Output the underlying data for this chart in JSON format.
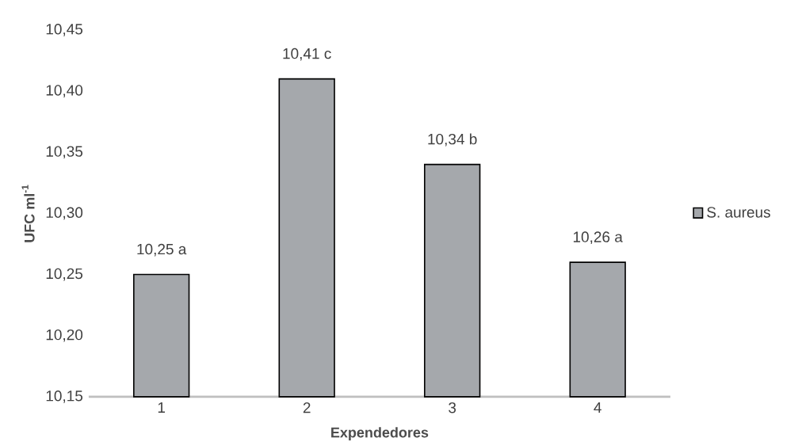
{
  "chart_data": {
    "type": "bar",
    "xlabel": "Expendedores",
    "ylabel": "UFC ml$^{-1}$",
    "categories": [
      "1",
      "2",
      "3",
      "4"
    ],
    "series": [
      {
        "name": "S. aureus",
        "color": "#a5a8ac",
        "values": [
          10.25,
          10.41,
          10.34,
          10.26
        ],
        "value_labels": [
          "10,25 a",
          "10,41 c",
          "10,34 b",
          "10,26 a"
        ]
      }
    ],
    "ylim": [
      10.15,
      10.45
    ],
    "yticks": [
      {
        "value": 10.15,
        "label": "10,15"
      },
      {
        "value": 10.2,
        "label": "10,20"
      },
      {
        "value": 10.25,
        "label": "10,25"
      },
      {
        "value": 10.3,
        "label": "10,30"
      },
      {
        "value": 10.35,
        "label": "10,35"
      },
      {
        "value": 10.4,
        "label": "10,40"
      },
      {
        "value": 10.45,
        "label": "10,45"
      }
    ],
    "legend": "right"
  }
}
